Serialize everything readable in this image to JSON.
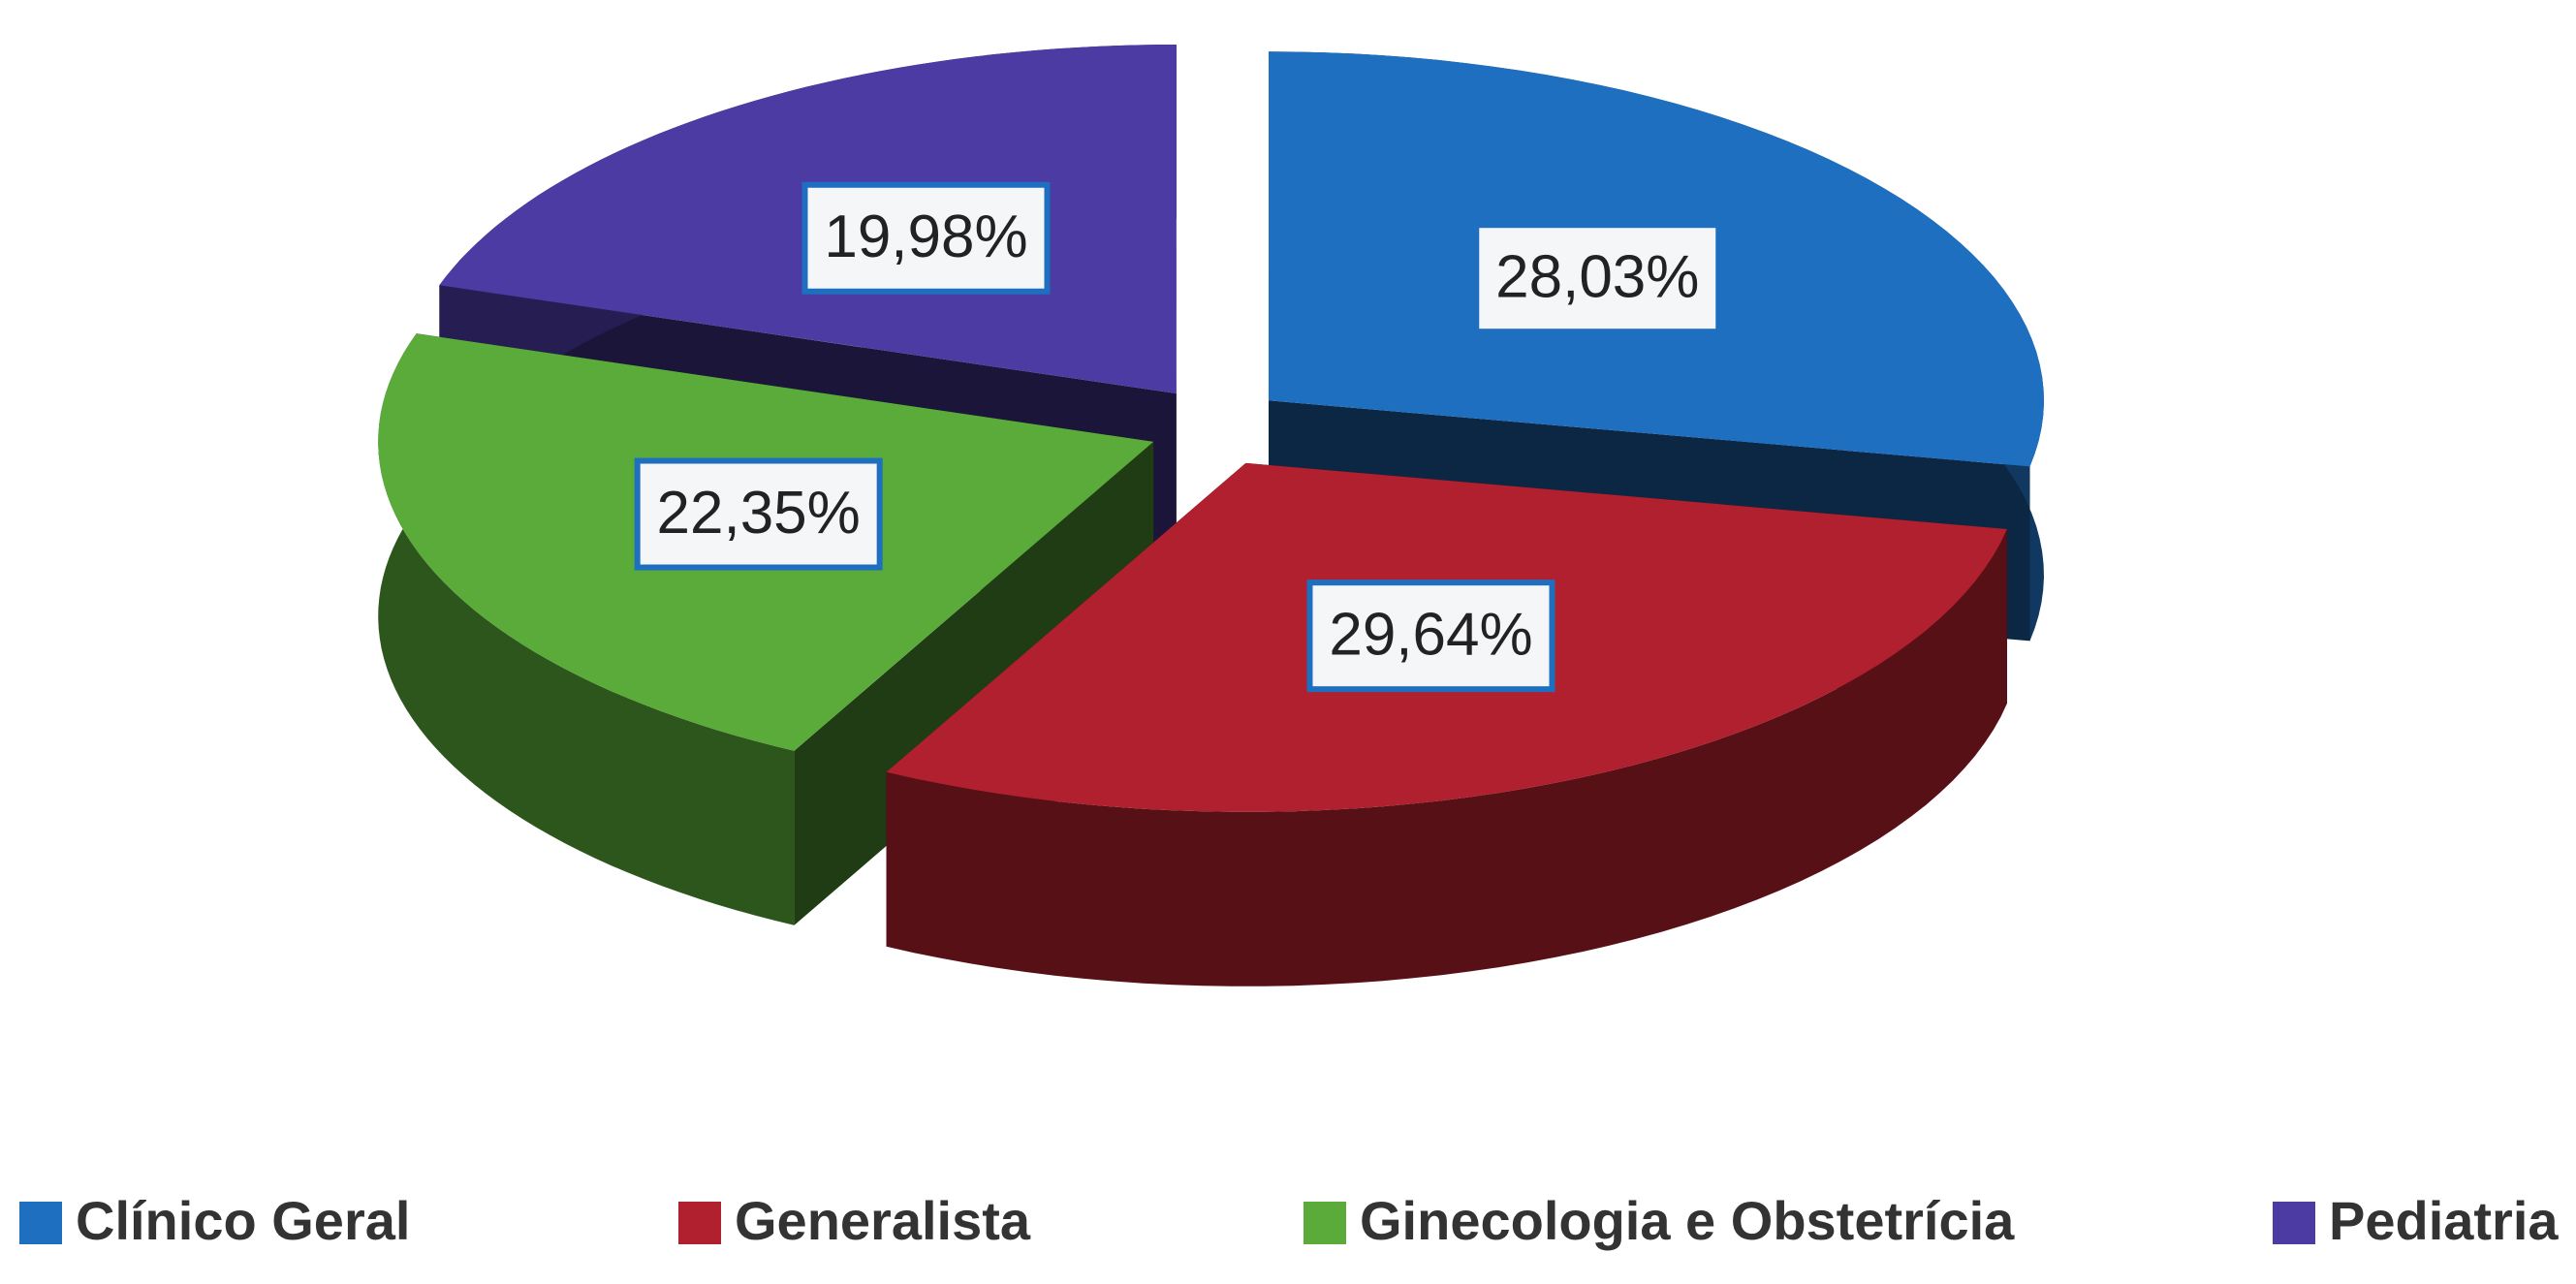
{
  "chart_data": {
    "type": "pie3d",
    "categories": [
      "Clínico Geral",
      "Generalista",
      "Ginecologia e Obstetrícia",
      "Pediatria"
    ],
    "values": [
      28.03,
      29.64,
      22.35,
      19.98
    ],
    "value_labels": [
      "28,03%",
      "29,64%",
      "22,35%",
      "19,98%"
    ],
    "colors": [
      "#1f6fc0",
      "#b0202e",
      "#5aab3a",
      "#4b3ba3"
    ],
    "legend": "bottom"
  }
}
